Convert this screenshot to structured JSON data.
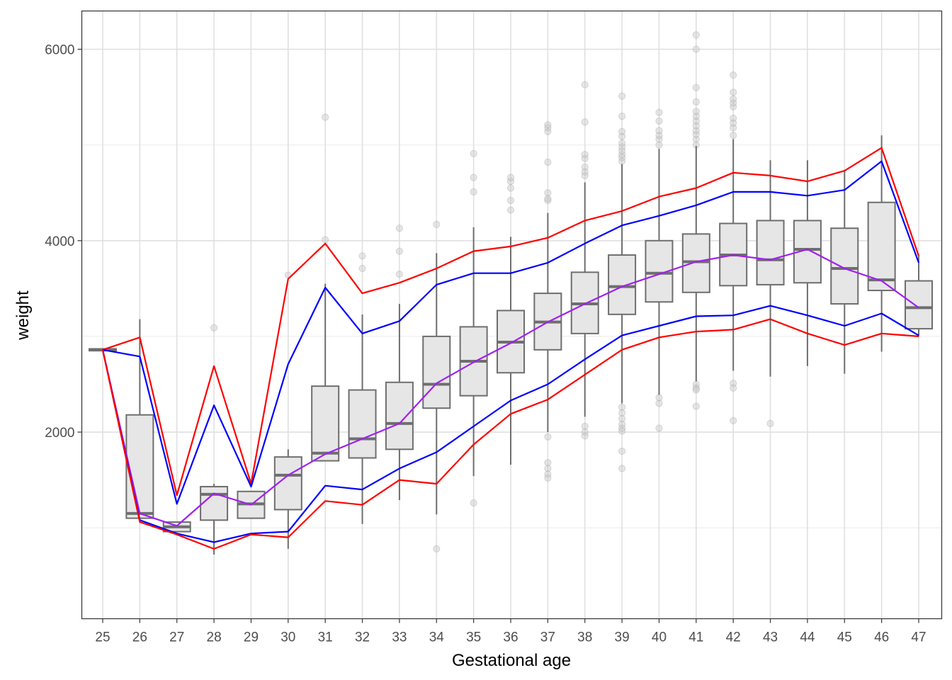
{
  "chart_data": {
    "type": "boxplot-with-lines",
    "xlabel": "Gestational age",
    "ylabel": "weight",
    "ylim": [
      50,
      6400
    ],
    "yticks": [
      2000,
      4000,
      6000
    ],
    "ytick_labels": [
      "2000",
      "4000",
      "6000"
    ],
    "categories": [
      "25",
      "26",
      "27",
      "28",
      "29",
      "30",
      "31",
      "32",
      "33",
      "34",
      "35",
      "36",
      "37",
      "38",
      "39",
      "40",
      "41",
      "42",
      "43",
      "44",
      "45",
      "46",
      "47"
    ],
    "boxes": [
      {
        "x": "25",
        "q1": 2850,
        "median": 2860,
        "q3": 2870,
        "lo": 2850,
        "hi": 2870
      },
      {
        "x": "26",
        "q1": 1100,
        "median": 1150,
        "q3": 2180,
        "lo": 1100,
        "hi": 3180
      },
      {
        "x": "27",
        "q1": 960,
        "median": 1010,
        "q3": 1060,
        "lo": 960,
        "hi": 1060
      },
      {
        "x": "28",
        "q1": 1080,
        "median": 1350,
        "q3": 1430,
        "lo": 720,
        "hi": 1460
      },
      {
        "x": "29",
        "q1": 1100,
        "median": 1250,
        "q3": 1380,
        "lo": 1100,
        "hi": 1380
      },
      {
        "x": "30",
        "q1": 1190,
        "median": 1550,
        "q3": 1740,
        "lo": 780,
        "hi": 1820
      },
      {
        "x": "31",
        "q1": 1700,
        "median": 1780,
        "q3": 2480,
        "lo": 1700,
        "hi": 3550
      },
      {
        "x": "32",
        "q1": 1730,
        "median": 1930,
        "q3": 2440,
        "lo": 1040,
        "hi": 3230
      },
      {
        "x": "33",
        "q1": 1820,
        "median": 2090,
        "q3": 2520,
        "lo": 1290,
        "hi": 3340
      },
      {
        "x": "34",
        "q1": 2250,
        "median": 2500,
        "q3": 3000,
        "lo": 1140,
        "hi": 3870
      },
      {
        "x": "35",
        "q1": 2380,
        "median": 2740,
        "q3": 3100,
        "lo": 1540,
        "hi": 4140
      },
      {
        "x": "36",
        "q1": 2620,
        "median": 2940,
        "q3": 3270,
        "lo": 1660,
        "hi": 4040
      },
      {
        "x": "37",
        "q1": 2860,
        "median": 3150,
        "q3": 3450,
        "lo": 2000,
        "hi": 4290
      },
      {
        "x": "38",
        "q1": 3030,
        "median": 3340,
        "q3": 3670,
        "lo": 2160,
        "hi": 4610
      },
      {
        "x": "39",
        "q1": 3230,
        "median": 3520,
        "q3": 3850,
        "lo": 2300,
        "hi": 4800
      },
      {
        "x": "40",
        "q1": 3360,
        "median": 3660,
        "q3": 4000,
        "lo": 2390,
        "hi": 4960
      },
      {
        "x": "41",
        "q1": 3460,
        "median": 3780,
        "q3": 4070,
        "lo": 2530,
        "hi": 4990
      },
      {
        "x": "42",
        "q1": 3530,
        "median": 3850,
        "q3": 4180,
        "lo": 2640,
        "hi": 5060
      },
      {
        "x": "43",
        "q1": 3540,
        "median": 3800,
        "q3": 4210,
        "lo": 2580,
        "hi": 4840
      },
      {
        "x": "44",
        "q1": 3560,
        "median": 3910,
        "q3": 4210,
        "lo": 2690,
        "hi": 4840
      },
      {
        "x": "45",
        "q1": 3340,
        "median": 3710,
        "q3": 4130,
        "lo": 2610,
        "hi": 4740
      },
      {
        "x": "46",
        "q1": 3480,
        "median": 3590,
        "q3": 4400,
        "lo": 2840,
        "hi": 5100
      },
      {
        "x": "47",
        "q1": 3080,
        "median": 3300,
        "q3": 3580,
        "lo": 3000,
        "hi": 3850
      }
    ],
    "outliers": [
      {
        "x": "28",
        "y": 3090
      },
      {
        "x": "30",
        "y": 3640
      },
      {
        "x": "31",
        "y": 4010
      },
      {
        "x": "31",
        "y": 5290
      },
      {
        "x": "32",
        "y": 3710
      },
      {
        "x": "32",
        "y": 3840
      },
      {
        "x": "33",
        "y": 3650
      },
      {
        "x": "33",
        "y": 3890
      },
      {
        "x": "33",
        "y": 4130
      },
      {
        "x": "34",
        "y": 4170
      },
      {
        "x": "34",
        "y": 780
      },
      {
        "x": "35",
        "y": 4510
      },
      {
        "x": "35",
        "y": 4660
      },
      {
        "x": "35",
        "y": 4910
      },
      {
        "x": "35",
        "y": 1260
      },
      {
        "x": "36",
        "y": 4320
      },
      {
        "x": "36",
        "y": 4420
      },
      {
        "x": "36",
        "y": 4550
      },
      {
        "x": "36",
        "y": 4620
      },
      {
        "x": "36",
        "y": 4660
      },
      {
        "x": "37",
        "y": 4420
      },
      {
        "x": "37",
        "y": 4440
      },
      {
        "x": "37",
        "y": 4500
      },
      {
        "x": "37",
        "y": 4820
      },
      {
        "x": "37",
        "y": 5140
      },
      {
        "x": "37",
        "y": 5180
      },
      {
        "x": "37",
        "y": 5210
      },
      {
        "x": "37",
        "y": 1950
      },
      {
        "x": "37",
        "y": 1680
      },
      {
        "x": "37",
        "y": 1620
      },
      {
        "x": "37",
        "y": 1560
      },
      {
        "x": "37",
        "y": 1520
      },
      {
        "x": "38",
        "y": 4680
      },
      {
        "x": "38",
        "y": 4720
      },
      {
        "x": "38",
        "y": 4770
      },
      {
        "x": "38",
        "y": 4860
      },
      {
        "x": "38",
        "y": 4900
      },
      {
        "x": "38",
        "y": 5240
      },
      {
        "x": "38",
        "y": 5630
      },
      {
        "x": "38",
        "y": 2060
      },
      {
        "x": "38",
        "y": 2000
      },
      {
        "x": "38",
        "y": 1960
      },
      {
        "x": "39",
        "y": 4830
      },
      {
        "x": "39",
        "y": 4870
      },
      {
        "x": "39",
        "y": 4900
      },
      {
        "x": "39",
        "y": 4940
      },
      {
        "x": "39",
        "y": 4980
      },
      {
        "x": "39",
        "y": 5020
      },
      {
        "x": "39",
        "y": 5090
      },
      {
        "x": "39",
        "y": 5140
      },
      {
        "x": "39",
        "y": 5300
      },
      {
        "x": "39",
        "y": 5510
      },
      {
        "x": "39",
        "y": 2260
      },
      {
        "x": "39",
        "y": 2200
      },
      {
        "x": "39",
        "y": 2140
      },
      {
        "x": "39",
        "y": 2080
      },
      {
        "x": "39",
        "y": 2040
      },
      {
        "x": "39",
        "y": 2010
      },
      {
        "x": "39",
        "y": 1800
      },
      {
        "x": "39",
        "y": 1620
      },
      {
        "x": "40",
        "y": 5000
      },
      {
        "x": "40",
        "y": 5060
      },
      {
        "x": "40",
        "y": 5100
      },
      {
        "x": "40",
        "y": 5150
      },
      {
        "x": "40",
        "y": 5250
      },
      {
        "x": "40",
        "y": 5340
      },
      {
        "x": "40",
        "y": 2360
      },
      {
        "x": "40",
        "y": 2300
      },
      {
        "x": "40",
        "y": 2040
      },
      {
        "x": "41",
        "y": 5000
      },
      {
        "x": "41",
        "y": 5060
      },
      {
        "x": "41",
        "y": 5110
      },
      {
        "x": "41",
        "y": 5150
      },
      {
        "x": "41",
        "y": 5200
      },
      {
        "x": "41",
        "y": 5250
      },
      {
        "x": "41",
        "y": 5300
      },
      {
        "x": "41",
        "y": 5350
      },
      {
        "x": "41",
        "y": 5450
      },
      {
        "x": "41",
        "y": 5600
      },
      {
        "x": "41",
        "y": 6000
      },
      {
        "x": "41",
        "y": 6150
      },
      {
        "x": "41",
        "y": 2500
      },
      {
        "x": "41",
        "y": 2460
      },
      {
        "x": "41",
        "y": 2440
      },
      {
        "x": "41",
        "y": 2270
      },
      {
        "x": "42",
        "y": 5100
      },
      {
        "x": "42",
        "y": 5180
      },
      {
        "x": "42",
        "y": 5230
      },
      {
        "x": "42",
        "y": 5280
      },
      {
        "x": "42",
        "y": 5400
      },
      {
        "x": "42",
        "y": 5440
      },
      {
        "x": "42",
        "y": 5480
      },
      {
        "x": "42",
        "y": 5550
      },
      {
        "x": "42",
        "y": 5730
      },
      {
        "x": "42",
        "y": 2510
      },
      {
        "x": "42",
        "y": 2460
      },
      {
        "x": "42",
        "y": 2120
      },
      {
        "x": "43",
        "y": 2090
      }
    ],
    "series": [
      {
        "name": "upper-red",
        "color": "#ff0000",
        "values": [
          2860,
          2990,
          1340,
          2690,
          1460,
          3600,
          3970,
          3450,
          3560,
          3710,
          3890,
          3940,
          4030,
          4210,
          4310,
          4460,
          4550,
          4710,
          4680,
          4620,
          4730,
          4970,
          3840
        ]
      },
      {
        "name": "upper-blue",
        "color": "#0000ff",
        "values": [
          2860,
          2790,
          1250,
          2280,
          1430,
          2710,
          3510,
          3030,
          3160,
          3540,
          3660,
          3660,
          3770,
          3970,
          4160,
          4260,
          4370,
          4510,
          4510,
          4470,
          4530,
          4830,
          3770
        ]
      },
      {
        "name": "mean-purple",
        "color": "#a020f0",
        "values": [
          2860,
          1150,
          1020,
          1360,
          1240,
          1550,
          1770,
          1930,
          2090,
          2510,
          2730,
          2930,
          3150,
          3340,
          3520,
          3650,
          3780,
          3850,
          3800,
          3910,
          3710,
          3580,
          3300
        ]
      },
      {
        "name": "lower-blue",
        "color": "#0000ff",
        "values": [
          2860,
          1080,
          940,
          850,
          940,
          960,
          1440,
          1400,
          1620,
          1790,
          2060,
          2330,
          2500,
          2760,
          3010,
          3110,
          3210,
          3220,
          3320,
          3220,
          3110,
          3240,
          3010
        ]
      },
      {
        "name": "lower-red",
        "color": "#ff0000",
        "values": [
          2860,
          1060,
          930,
          780,
          930,
          900,
          1280,
          1240,
          1500,
          1460,
          1870,
          2190,
          2340,
          2600,
          2860,
          2990,
          3050,
          3070,
          3180,
          3030,
          2910,
          3030,
          3000
        ]
      }
    ]
  }
}
